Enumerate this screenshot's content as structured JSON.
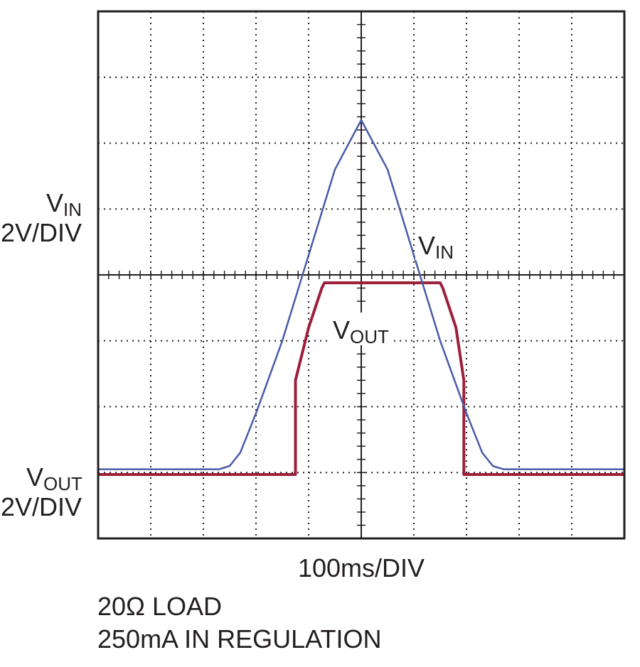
{
  "chart_data": {
    "type": "line",
    "title": "",
    "grid": true,
    "x_divisions": 10,
    "y_divisions": 8,
    "x_scale_label": "100ms/DIV",
    "y_left_labels": [
      {
        "main": "V",
        "sub": "IN",
        "scale": "2V/DIV"
      },
      {
        "main": "V",
        "sub": "OUT",
        "scale": "2V/DIV"
      }
    ],
    "notes": [
      "20Ω LOAD",
      "250mA IN REGULATION"
    ],
    "series": [
      {
        "name": "VIN",
        "label_main": "V",
        "label_sub": "IN",
        "color": "#4a5aa8",
        "units": "divisions",
        "points": [
          [
            0,
            1.05
          ],
          [
            2.3,
            1.05
          ],
          [
            2.5,
            1.1
          ],
          [
            2.7,
            1.3
          ],
          [
            3.0,
            1.9
          ],
          [
            3.5,
            3.0
          ],
          [
            4.0,
            4.3
          ],
          [
            4.5,
            5.6
          ],
          [
            5.0,
            6.35
          ],
          [
            5.5,
            5.6
          ],
          [
            6.0,
            4.3
          ],
          [
            6.5,
            3.0
          ],
          [
            7.0,
            1.9
          ],
          [
            7.3,
            1.3
          ],
          [
            7.5,
            1.1
          ],
          [
            7.7,
            1.05
          ],
          [
            10,
            1.05
          ]
        ]
      },
      {
        "name": "VOUT",
        "label_main": "V",
        "label_sub": "OUT",
        "color": "#9c1f3a",
        "units": "divisions",
        "points": [
          [
            0,
            0.97
          ],
          [
            3.75,
            0.97
          ],
          [
            3.75,
            2.4
          ],
          [
            4.0,
            3.2
          ],
          [
            4.25,
            3.8
          ],
          [
            4.3,
            3.88
          ],
          [
            5.0,
            3.88
          ],
          [
            6.5,
            3.88
          ],
          [
            6.55,
            3.8
          ],
          [
            6.8,
            3.2
          ],
          [
            6.95,
            2.4
          ],
          [
            6.95,
            0.97
          ],
          [
            10,
            0.97
          ]
        ]
      }
    ]
  }
}
